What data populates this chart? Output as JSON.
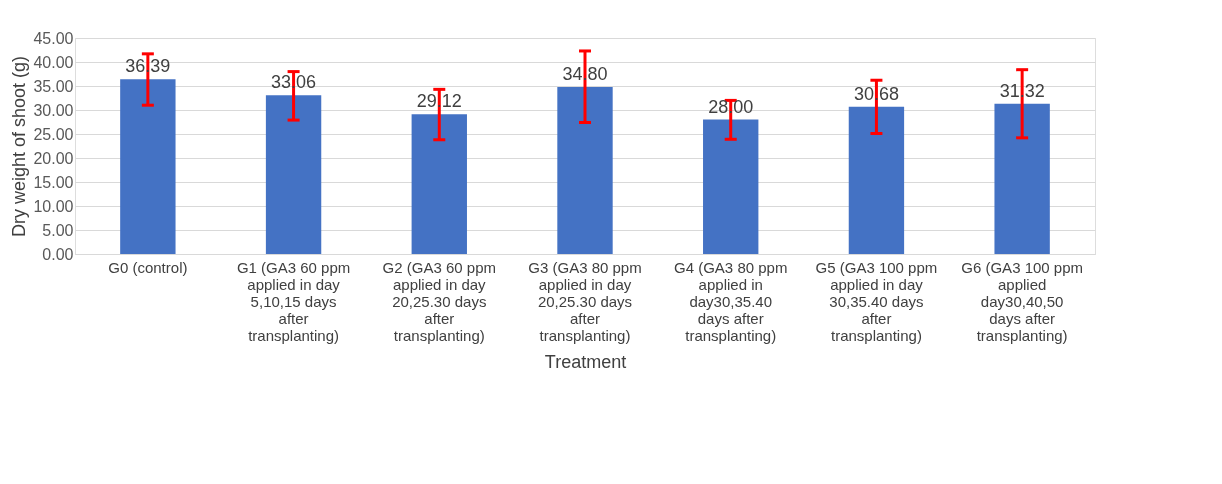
{
  "chart_data": {
    "type": "bar",
    "xlabel": "Treatment",
    "ylabel": "Dry weight of shoot (g)",
    "categories": [
      "G0 (control)",
      "G1 (GA3 60 ppm applied in day 5,10,15 days after transplanting)",
      "G2 (GA3 60 ppm applied in day 20,25.30 days after transplanting)",
      "G3 (GA3 80 ppm applied in day 20,25.30 days after transplanting)",
      "G4 (GA3 80 ppm applied in day30,35.40 days after transplanting)",
      "G5 (GA3 100 ppm applied in day 30,35.40 days after transplanting)",
      "G6 (GA3 100 ppm applied day30,40,50 days after transplanting)"
    ],
    "values": [
      36.39,
      33.06,
      29.12,
      34.8,
      28.0,
      30.68,
      31.32
    ],
    "value_labels": [
      "36.39",
      "33.06",
      "29.12",
      "34.80",
      "28.00",
      "30.68",
      "31.32"
    ],
    "errors": [
      [
        31.0,
        41.7
      ],
      [
        27.9,
        38.0
      ],
      [
        23.8,
        34.3
      ],
      [
        27.4,
        42.3
      ],
      [
        23.9,
        32.0
      ],
      [
        25.1,
        36.2
      ],
      [
        24.2,
        38.4
      ]
    ],
    "color": "#4472c4",
    "ylim": [
      0,
      45
    ],
    "yticks": [
      {
        "value": 0,
        "label": "0.00"
      },
      {
        "value": 5,
        "label": "5.00"
      },
      {
        "value": 10,
        "label": "10.00"
      },
      {
        "value": 15,
        "label": "15.00"
      },
      {
        "value": 20,
        "label": "20.00"
      },
      {
        "value": 25,
        "label": "25.00"
      },
      {
        "value": 30,
        "label": "30.00"
      },
      {
        "value": 35,
        "label": "35.00"
      },
      {
        "value": 40,
        "label": "40.00"
      },
      {
        "value": 45,
        "label": "45.00"
      }
    ],
    "grid": "y"
  }
}
